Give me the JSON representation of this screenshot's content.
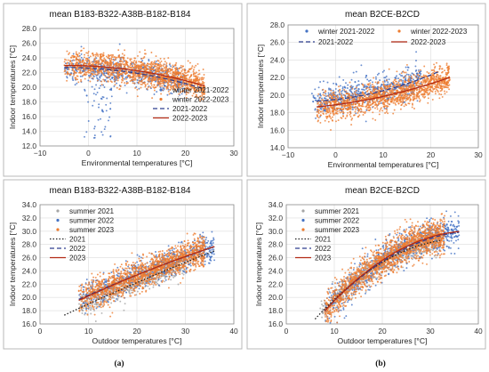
{
  "captions": [
    "(a)",
    "(b)"
  ],
  "chart_data": [
    {
      "type": "scatter",
      "title": "mean B183-B322-A38B-B182-B184",
      "xlabel": "Environmental temperatures [°C]",
      "ylabel": "Indoor temperatures [°C]",
      "xlim": [
        -10,
        30
      ],
      "ylim": [
        12.0,
        28.0
      ],
      "xticks": [
        -10,
        0,
        10,
        20,
        30
      ],
      "xtick_labels": [
        "−10",
        "0",
        "10",
        "20",
        "30"
      ],
      "yticks": [
        12,
        14,
        16,
        18,
        20,
        22,
        24,
        26,
        28
      ],
      "ytick_labels": [
        "12.0",
        "14.0",
        "16.0",
        "18.0",
        "20.0",
        "22.0",
        "24.0",
        "26.0",
        "28.0"
      ],
      "grid": true,
      "legend": "lower-right",
      "legend_items": [
        {
          "kind": "marker",
          "label": "winter 2021-2022",
          "color": "#4472c4"
        },
        {
          "kind": "marker",
          "label": "winter 2022-2023",
          "color": "#ed7d31"
        },
        {
          "kind": "line",
          "label": "2021-2022",
          "color": "#2f3f8f",
          "dash": "5,3"
        },
        {
          "kind": "line",
          "label": "2022-2023",
          "color": "#b22a14",
          "dash": ""
        }
      ],
      "series": [
        {
          "name": "winter 2021-2022",
          "kind": "scatter",
          "color": "#4472c4",
          "x_range": [
            -5,
            20
          ],
          "y_fit": [
            22.6,
            -0.035,
            -0.0035
          ],
          "spread": 0.9,
          "count": 650,
          "outliers": {
            "x_range": [
              -1,
              5
            ],
            "y_range": [
              13.0,
              20.5
            ],
            "count": 55
          }
        },
        {
          "name": "winter 2022-2023",
          "kind": "scatter",
          "color": "#ed7d31",
          "x_range": [
            -5,
            24
          ],
          "y_fit": [
            22.9,
            -0.03,
            -0.0035
          ],
          "spread": 1.0,
          "count": 1500
        },
        {
          "name": "2021-2022",
          "kind": "trend",
          "color": "#2f3f8f",
          "dash": "5,3",
          "x_range": [
            -5,
            24
          ],
          "y_fit": [
            22.6,
            -0.035,
            -0.0035
          ]
        },
        {
          "name": "2022-2023",
          "kind": "trend",
          "color": "#b22a14",
          "dash": "",
          "x_range": [
            -5,
            24
          ],
          "y_fit": [
            22.9,
            -0.03,
            -0.0035
          ]
        }
      ]
    },
    {
      "type": "scatter",
      "title": "mean B2CE-B2CD",
      "xlabel": "Environmental temperatures [°C]",
      "ylabel": "Indoor temperatures [°C]",
      "xlim": [
        -10,
        30
      ],
      "ylim": [
        14.0,
        28.0
      ],
      "xticks": [
        -10,
        0,
        10,
        20,
        30
      ],
      "xtick_labels": [
        "−10",
        "0",
        "10",
        "20",
        "30"
      ],
      "yticks": [
        14,
        16,
        18,
        20,
        22,
        24,
        26,
        28
      ],
      "ytick_labels": [
        "14.0",
        "16.0",
        "18.0",
        "20.0",
        "22.0",
        "24.0",
        "26.0",
        "28.0"
      ],
      "grid": true,
      "legend": "top",
      "legend_items": [
        {
          "kind": "marker",
          "label": "winter 2021-2022",
          "color": "#4472c4"
        },
        {
          "kind": "marker",
          "label": "winter 2022-2023",
          "color": "#ed7d31"
        },
        {
          "kind": "line",
          "label": "2021-2022",
          "color": "#2f3f8f",
          "dash": "5,3"
        },
        {
          "kind": "line",
          "label": "2022-2023",
          "color": "#b22a14",
          "dash": ""
        }
      ],
      "series": [
        {
          "name": "winter 2021-2022",
          "kind": "scatter",
          "color": "#4472c4",
          "x_range": [
            -5,
            18
          ],
          "y_fit": [
            19.5,
            0.06,
            0.004
          ],
          "spread": 0.9,
          "count": 600
        },
        {
          "name": "winter 2022-2023",
          "kind": "scatter",
          "color": "#ed7d31",
          "x_range": [
            -4,
            24
          ],
          "y_fit": [
            18.9,
            0.07,
            0.0025
          ],
          "spread": 0.8,
          "count": 1400
        },
        {
          "name": "2021-2022",
          "kind": "trend",
          "color": "#2f3f8f",
          "dash": "5,3",
          "x_range": [
            -4,
            22
          ],
          "y_fit": [
            19.5,
            0.06,
            0.004
          ]
        },
        {
          "name": "2022-2023",
          "kind": "trend",
          "color": "#b22a14",
          "dash": "",
          "x_range": [
            -4,
            24
          ],
          "y_fit": [
            18.9,
            0.07,
            0.0025
          ]
        }
      ]
    },
    {
      "type": "scatter",
      "title": "mean B183-B322-A38B-B182-B184",
      "xlabel": "Outdoor temperatures [°C]",
      "ylabel": "Indoor temperatures [°C]",
      "xlim": [
        0,
        40
      ],
      "ylim": [
        16.0,
        34.0
      ],
      "xticks": [
        0,
        10,
        20,
        30,
        40
      ],
      "xtick_labels": [
        "0",
        "10",
        "20",
        "30",
        "40"
      ],
      "yticks": [
        16,
        18,
        20,
        22,
        24,
        26,
        28,
        30,
        32,
        34
      ],
      "ytick_labels": [
        "16.0",
        "18.0",
        "20.0",
        "22.0",
        "24.0",
        "26.0",
        "28.0",
        "30.0",
        "32.0",
        "34.0"
      ],
      "grid": true,
      "legend": "top-left",
      "legend_items": [
        {
          "kind": "marker",
          "label": "summer 2021",
          "color": "#a5a5a5"
        },
        {
          "kind": "marker",
          "label": "summer 2022",
          "color": "#4472c4"
        },
        {
          "kind": "marker",
          "label": "summer 2023",
          "color": "#ed7d31"
        },
        {
          "kind": "line",
          "label": "2021",
          "color": "#222222",
          "dash": "1.5,2"
        },
        {
          "kind": "line",
          "label": "2022",
          "color": "#2f3f8f",
          "dash": "5,3"
        },
        {
          "kind": "line",
          "label": "2023",
          "color": "#b22a14",
          "dash": ""
        }
      ],
      "series": [
        {
          "name": "summer 2021",
          "kind": "scatter",
          "color": "#a5a5a5",
          "x_range": [
            8,
            30
          ],
          "y_fit": [
            15.6,
            0.35,
            -0.0009
          ],
          "spread": 0.9,
          "count": 500
        },
        {
          "name": "summer 2022",
          "kind": "scatter",
          "color": "#4472c4",
          "x_range": [
            8,
            36
          ],
          "y_fit": [
            16.7,
            0.37,
            -0.0018
          ],
          "spread": 1.1,
          "count": 650
        },
        {
          "name": "summer 2023",
          "kind": "scatter",
          "color": "#ed7d31",
          "x_range": [
            8,
            34
          ],
          "y_fit": [
            16.7,
            0.37,
            -0.0018
          ],
          "spread": 1.2,
          "count": 1500
        },
        {
          "name": "2021",
          "kind": "trend",
          "color": "#222222",
          "dash": "1.5,2",
          "x_range": [
            5,
            36
          ],
          "y_fit": [
            15.6,
            0.35,
            -0.0009
          ]
        },
        {
          "name": "2022",
          "kind": "trend",
          "color": "#2f3f8f",
          "dash": "5,3",
          "x_range": [
            8,
            36
          ],
          "y_fit": [
            17.0,
            0.35,
            -0.0015
          ]
        },
        {
          "name": "2023",
          "kind": "trend",
          "color": "#b22a14",
          "dash": "",
          "x_range": [
            8,
            36
          ],
          "y_fit": [
            16.7,
            0.37,
            -0.0018
          ]
        }
      ]
    },
    {
      "type": "scatter",
      "title": "mean B2CE-B2CD",
      "xlabel": "Outdoor temperatures [°C]",
      "ylabel": "Indoor temperatures [°C]",
      "xlim": [
        0,
        40
      ],
      "ylim": [
        16.0,
        34.0
      ],
      "xticks": [
        0,
        10,
        20,
        30,
        40
      ],
      "xtick_labels": [
        "0",
        "10",
        "20",
        "30",
        "40"
      ],
      "yticks": [
        16,
        18,
        20,
        22,
        24,
        26,
        28,
        30,
        32,
        34
      ],
      "ytick_labels": [
        "16.0",
        "18.0",
        "20.0",
        "22.0",
        "24.0",
        "26.0",
        "28.0",
        "30.0",
        "32.0",
        "34.0"
      ],
      "grid": true,
      "legend": "top-left",
      "legend_items": [
        {
          "kind": "marker",
          "label": "summer 2021",
          "color": "#a5a5a5"
        },
        {
          "kind": "marker",
          "label": "summer 2022",
          "color": "#4472c4"
        },
        {
          "kind": "marker",
          "label": "summer 2023",
          "color": "#ed7d31"
        },
        {
          "kind": "line",
          "label": "2021",
          "color": "#222222",
          "dash": "1.5,2"
        },
        {
          "kind": "line",
          "label": "2022",
          "color": "#2f3f8f",
          "dash": "5,3"
        },
        {
          "kind": "line",
          "label": "2023",
          "color": "#b22a14",
          "dash": ""
        }
      ],
      "series": [
        {
          "name": "summer 2021",
          "kind": "scatter",
          "color": "#a5a5a5",
          "x_range": [
            7,
            32
          ],
          "y_fit": [
            11.5,
            0.95,
            -0.013
          ],
          "spread": 0.9,
          "count": 600
        },
        {
          "name": "summer 2022",
          "kind": "scatter",
          "color": "#4472c4",
          "x_range": [
            8,
            36
          ],
          "y_fit": [
            10.8,
            1.0,
            -0.013
          ],
          "spread": 1.3,
          "count": 700
        },
        {
          "name": "summer 2023",
          "kind": "scatter",
          "color": "#ed7d31",
          "x_range": [
            8,
            33
          ],
          "y_fit": [
            10.8,
            1.0,
            -0.013
          ],
          "spread": 1.3,
          "count": 1600
        },
        {
          "name": "2021",
          "kind": "trend",
          "color": "#222222",
          "dash": "1.5,2",
          "x_range": [
            6,
            32
          ],
          "y_fit": [
            11.5,
            0.95,
            -0.013
          ]
        },
        {
          "name": "2022",
          "kind": "trend",
          "color": "#2f3f8f",
          "dash": "5,3",
          "x_range": [
            8,
            36
          ],
          "y_fit": [
            11.2,
            0.95,
            -0.012
          ]
        },
        {
          "name": "2023",
          "kind": "trend",
          "color": "#b22a14",
          "dash": "",
          "x_range": [
            8,
            36
          ],
          "y_fit": [
            10.8,
            1.0,
            -0.013
          ]
        }
      ]
    }
  ]
}
